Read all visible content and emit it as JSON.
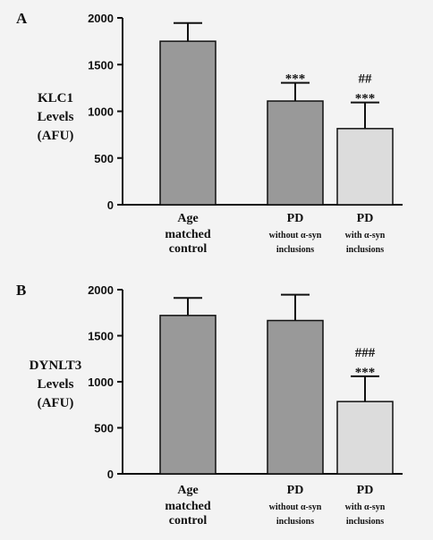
{
  "chart_data": [
    {
      "type": "bar",
      "panel": "A",
      "ylabel": [
        "KLC1",
        "Levels",
        "(AFU)"
      ],
      "ylim": [
        0,
        2000
      ],
      "yticks": [
        0,
        500,
        1000,
        1500,
        2000
      ],
      "categories": [
        [
          "Age",
          "matched",
          "control"
        ],
        [
          "PD",
          "without α-syn",
          "inclusions"
        ],
        [
          "PD",
          "with α-syn",
          "inclusions"
        ]
      ],
      "values": [
        1750,
        1110,
        815
      ],
      "errors": [
        195,
        195,
        280
      ],
      "significance": [
        [],
        [
          "***"
        ],
        [
          "##",
          "***"
        ]
      ],
      "bar_colors": [
        "#999999",
        "#999999",
        "#dcdcdc"
      ]
    },
    {
      "type": "bar",
      "panel": "B",
      "ylabel": [
        "DYNLT3",
        "Levels",
        "(AFU)"
      ],
      "ylim": [
        0,
        2000
      ],
      "yticks": [
        0,
        500,
        1000,
        1500,
        2000
      ],
      "categories": [
        [
          "Age",
          "matched",
          "control"
        ],
        [
          "PD",
          "without α-syn",
          "inclusions"
        ],
        [
          "PD",
          "with α-syn",
          "inclusions"
        ]
      ],
      "values": [
        1720,
        1665,
        785
      ],
      "errors": [
        190,
        280,
        275
      ],
      "significance": [
        [],
        [],
        [
          "###",
          "***"
        ]
      ],
      "bar_colors": [
        "#999999",
        "#999999",
        "#dcdcdc"
      ]
    }
  ]
}
